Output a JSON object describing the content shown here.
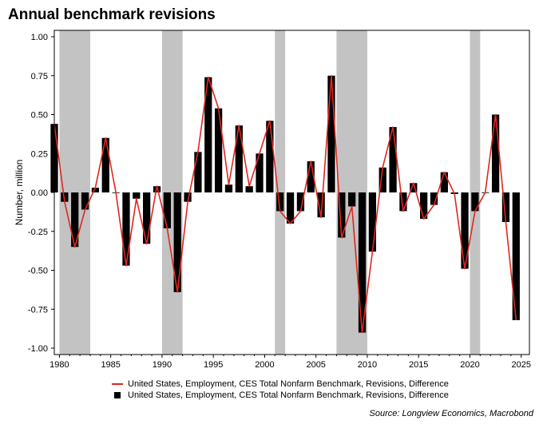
{
  "chart_data": {
    "type": "bar",
    "title": "Annual benchmark revisions",
    "ylabel": "Number, million",
    "xlabel": "",
    "ylim": [
      -1.0,
      1.0
    ],
    "xlim": [
      1979.5,
      2025.8
    ],
    "yticks": [
      "1.00",
      "0.75",
      "0.50",
      "0.25",
      "0.00",
      "-0.25",
      "-0.50",
      "-0.75",
      "-1.00"
    ],
    "ytick_values": [
      1.0,
      0.75,
      0.5,
      0.25,
      0.0,
      -0.25,
      -0.5,
      -0.75,
      -1.0
    ],
    "xticks": [
      "1980",
      "1985",
      "1990",
      "1995",
      "2000",
      "2005",
      "2010",
      "2015",
      "2020",
      "2025"
    ],
    "xtick_values": [
      1980,
      1985,
      1990,
      1995,
      2000,
      2005,
      2010,
      2015,
      2020,
      2025
    ],
    "recessions": [
      [
        1980.0,
        1983.0
      ],
      [
        1990.0,
        1992.0
      ],
      [
        2001.0,
        2002.0
      ],
      [
        2007.0,
        2010.0
      ],
      [
        2020.0,
        2021.0
      ]
    ],
    "series": [
      {
        "name": "United States, Employment, CES Total Nonfarm Benchmark, Revisions, Difference",
        "kind": "bar",
        "color": "#000000",
        "x": [
          1979.5,
          1980.5,
          1981.5,
          1982.5,
          1983.5,
          1984.5,
          1985.5,
          1986.5,
          1987.5,
          1988.5,
          1989.5,
          1990.5,
          1991.5,
          1992.5,
          1993.5,
          1994.5,
          1995.5,
          1996.5,
          1997.5,
          1998.5,
          1999.5,
          2000.5,
          2001.5,
          2002.5,
          2003.5,
          2004.5,
          2005.5,
          2006.5,
          2007.5,
          2008.5,
          2009.5,
          2010.5,
          2011.5,
          2012.5,
          2013.5,
          2014.5,
          2015.5,
          2016.5,
          2017.5,
          2018.5,
          2019.5,
          2020.5,
          2021.5,
          2022.5,
          2023.5,
          2024.5
        ],
        "values": [
          0.44,
          -0.06,
          -0.35,
          -0.11,
          0.03,
          0.35,
          0.0,
          -0.47,
          -0.04,
          -0.33,
          0.04,
          -0.23,
          -0.64,
          -0.06,
          0.26,
          0.74,
          0.54,
          0.05,
          0.43,
          0.04,
          0.25,
          0.46,
          -0.12,
          -0.2,
          -0.12,
          0.2,
          -0.16,
          0.75,
          -0.29,
          -0.09,
          -0.9,
          -0.38,
          0.16,
          0.42,
          -0.12,
          0.06,
          -0.17,
          -0.08,
          0.13,
          -0.01,
          -0.49,
          -0.12,
          0.0,
          0.5,
          -0.19,
          -0.82
        ]
      },
      {
        "name": "United States, Employment, CES Total Nonfarm Benchmark, Revisions, Difference",
        "kind": "line",
        "color": "#e0261f",
        "x": [
          1979.5,
          1980.5,
          1981.5,
          1982.5,
          1983.5,
          1984.5,
          1985.5,
          1986.5,
          1987.5,
          1988.5,
          1989.5,
          1990.5,
          1991.5,
          1992.5,
          1993.5,
          1994.5,
          1995.5,
          1996.5,
          1997.5,
          1998.5,
          1999.5,
          2000.5,
          2001.5,
          2002.5,
          2003.5,
          2004.5,
          2005.5,
          2006.5,
          2007.5,
          2008.5,
          2009.5,
          2010.5,
          2011.5,
          2012.5,
          2013.5,
          2014.5,
          2015.5,
          2016.5,
          2017.5,
          2018.5,
          2019.5,
          2020.5,
          2021.5,
          2022.5,
          2023.5,
          2024.5
        ],
        "values": [
          0.44,
          -0.06,
          -0.35,
          -0.11,
          0.03,
          0.35,
          0.0,
          -0.47,
          -0.04,
          -0.33,
          0.04,
          -0.23,
          -0.64,
          -0.06,
          0.26,
          0.74,
          0.54,
          0.05,
          0.43,
          0.04,
          0.25,
          0.46,
          -0.12,
          -0.2,
          -0.12,
          0.2,
          -0.16,
          0.75,
          -0.29,
          -0.09,
          -0.9,
          -0.38,
          0.16,
          0.42,
          -0.12,
          0.06,
          -0.17,
          -0.08,
          0.13,
          -0.01,
          -0.49,
          -0.12,
          0.0,
          0.5,
          -0.19,
          -0.82
        ]
      }
    ],
    "legend": [
      "United States, Employment, CES Total Nonfarm Benchmark, Revisions, Difference",
      "United States, Employment, CES Total Nonfarm Benchmark, Revisions, Difference"
    ],
    "source": "Source: Longview Economics, Macrobond",
    "colors": {
      "bar": "#000000",
      "line": "#e0261f",
      "recession": "#c3c3c3"
    }
  }
}
